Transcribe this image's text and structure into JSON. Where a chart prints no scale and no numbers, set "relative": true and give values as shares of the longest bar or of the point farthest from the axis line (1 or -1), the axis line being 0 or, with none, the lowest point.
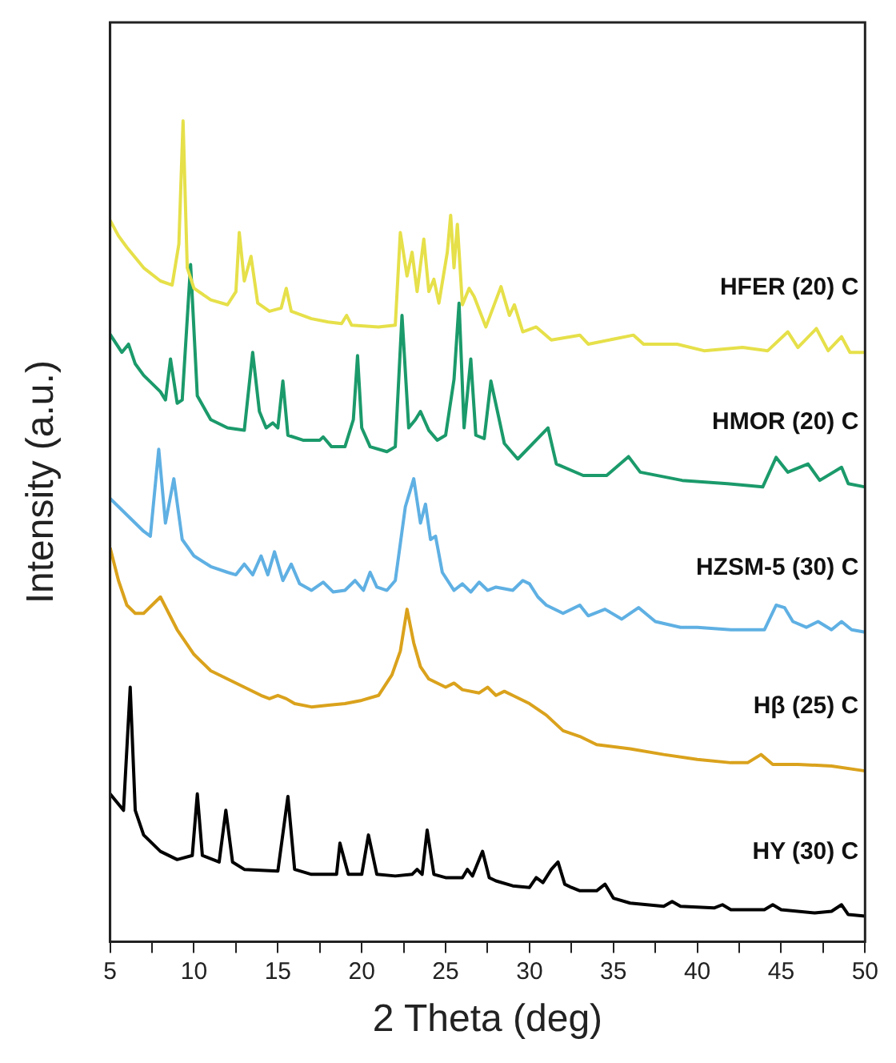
{
  "chart_data": {
    "type": "line",
    "xlabel": "2 Theta (deg)",
    "ylabel": "Intensity (a.u.)",
    "relative": true,
    "xlim": [
      5,
      50
    ],
    "xticks": [
      5,
      {
        "value": 7.5,
        "label": null
      },
      10,
      {
        "value": 12.5,
        "label": null
      },
      15,
      {
        "value": 17.5,
        "label": null
      },
      20,
      {
        "value": 22.5,
        "label": null
      },
      25,
      {
        "value": 27.5,
        "label": null
      },
      30,
      {
        "value": 32.5,
        "label": null
      },
      35,
      {
        "value": 37.5,
        "label": null
      },
      40,
      {
        "value": 42.5,
        "label": null
      },
      45,
      {
        "value": 47.5,
        "label": null
      },
      50
    ],
    "grid": false,
    "legend": false,
    "marker": "none",
    "line_style": "solid",
    "series": [
      {
        "name": "HFER (20) C",
        "color": "#e6e04a",
        "x": [
          5,
          5.5,
          6,
          7,
          8,
          8.7,
          9.1,
          9.35,
          9.6,
          10,
          11,
          12,
          12.5,
          12.7,
          13,
          13.4,
          13.8,
          14.5,
          15.2,
          15.5,
          15.8,
          17,
          18,
          18.8,
          19.1,
          19.4,
          21,
          22,
          22.3,
          22.7,
          23,
          23.3,
          23.7,
          24,
          24.3,
          24.6,
          25.1,
          25.3,
          25.5,
          25.7,
          26,
          26.4,
          26.7,
          27.4,
          28.3,
          28.8,
          29.1,
          29.6,
          30.4,
          31.3,
          33,
          33.5,
          36.2,
          36.8,
          38.8,
          40.4,
          42.7,
          44.2,
          45.4,
          46,
          47.1,
          47.8,
          48.6,
          49.1,
          50
        ],
        "values": [
          0.879,
          0.86,
          0.846,
          0.821,
          0.805,
          0.8,
          0.85,
          1,
          0.821,
          0.796,
          0.782,
          0.776,
          0.792,
          0.864,
          0.805,
          0.835,
          0.778,
          0.768,
          0.772,
          0.796,
          0.768,
          0.759,
          0.755,
          0.753,
          0.763,
          0.751,
          0.749,
          0.751,
          0.864,
          0.811,
          0.84,
          0.792,
          0.856,
          0.792,
          0.807,
          0.778,
          0.84,
          0.885,
          0.821,
          0.874,
          0.776,
          0.796,
          0.786,
          0.749,
          0.798,
          0.763,
          0.776,
          0.743,
          0.749,
          0.733,
          0.739,
          0.728,
          0.739,
          0.728,
          0.728,
          0.72,
          0.724,
          0.72,
          0.743,
          0.724,
          0.747,
          0.72,
          0.737,
          0.718,
          0.718
        ]
      },
      {
        "name": "HMOR (20) C",
        "color": "#1b9a6b",
        "x": [
          5,
          5.7,
          6.1,
          6.5,
          7,
          8,
          8.3,
          8.6,
          9,
          9.3,
          9.8,
          10.2,
          11,
          12,
          13,
          13.5,
          13.9,
          14.3,
          14.7,
          15,
          15.3,
          15.6,
          16.5,
          17.5,
          17.7,
          18.2,
          19,
          19.5,
          19.75,
          20,
          20.5,
          21.5,
          22,
          22.4,
          22.8,
          23.2,
          23.5,
          24,
          24.5,
          25,
          25.5,
          25.8,
          26.1,
          26.5,
          26.8,
          27.3,
          27.7,
          28.5,
          29.3,
          31.1,
          31.6,
          33.2,
          34.6,
          35.9,
          36.6,
          39.1,
          41.8,
          43.9,
          44.7,
          45.4,
          46.6,
          47.3,
          48.6,
          49,
          50
        ],
        "values": [
          0.74,
          0.718,
          0.728,
          0.704,
          0.69,
          0.67,
          0.66,
          0.71,
          0.656,
          0.66,
          0.825,
          0.665,
          0.636,
          0.626,
          0.623,
          0.718,
          0.646,
          0.626,
          0.632,
          0.626,
          0.683,
          0.617,
          0.611,
          0.611,
          0.615,
          0.603,
          0.603,
          0.636,
          0.714,
          0.626,
          0.603,
          0.597,
          0.603,
          0.763,
          0.626,
          0.636,
          0.646,
          0.623,
          0.611,
          0.617,
          0.685,
          0.778,
          0.626,
          0.71,
          0.617,
          0.613,
          0.683,
          0.607,
          0.588,
          0.626,
          0.582,
          0.568,
          0.568,
          0.591,
          0.572,
          0.562,
          0.558,
          0.554,
          0.59,
          0.572,
          0.582,
          0.562,
          0.578,
          0.558,
          0.554
        ]
      },
      {
        "name": "HZSM-5 (30) C",
        "color": "#5fb0e3",
        "x": [
          5,
          6,
          7,
          7.4,
          7.9,
          8.3,
          8.8,
          9.3,
          10,
          11,
          12,
          12.5,
          13,
          13.5,
          14,
          14.4,
          14.8,
          15.3,
          15.8,
          16.3,
          17,
          17.7,
          18.3,
          19,
          19.6,
          20.1,
          20.5,
          20.9,
          21.5,
          22,
          22.6,
          23.1,
          23.5,
          23.8,
          24.1,
          24.4,
          24.8,
          25.5,
          26,
          26.5,
          27,
          27.5,
          28,
          29,
          29.6,
          30,
          30.5,
          31,
          32,
          33,
          33.5,
          34.5,
          35.5,
          36.5,
          37.5,
          39,
          40,
          42,
          44,
          44.7,
          45.2,
          45.7,
          46.5,
          47.2,
          48,
          48.6,
          49.2,
          50
        ],
        "values": [
          0.54,
          0.52,
          0.5,
          0.494,
          0.6,
          0.51,
          0.564,
          0.49,
          0.47,
          0.457,
          0.45,
          0.447,
          0.46,
          0.447,
          0.47,
          0.447,
          0.475,
          0.44,
          0.46,
          0.436,
          0.428,
          0.438,
          0.426,
          0.428,
          0.44,
          0.428,
          0.45,
          0.432,
          0.428,
          0.44,
          0.53,
          0.564,
          0.51,
          0.533,
          0.49,
          0.494,
          0.45,
          0.428,
          0.436,
          0.426,
          0.438,
          0.428,
          0.432,
          0.428,
          0.44,
          0.436,
          0.42,
          0.41,
          0.4,
          0.41,
          0.397,
          0.405,
          0.393,
          0.407,
          0.39,
          0.383,
          0.383,
          0.38,
          0.38,
          0.41,
          0.407,
          0.39,
          0.383,
          0.39,
          0.38,
          0.39,
          0.38,
          0.377
        ]
      },
      {
        "name": "Hβ (25) C",
        "color": "#daa21c",
        "x": [
          5,
          5.5,
          6,
          6.5,
          7,
          7.5,
          8,
          8.5,
          9,
          10,
          11,
          12,
          13,
          14,
          14.5,
          15,
          15.5,
          16,
          17,
          18,
          19,
          20,
          21,
          21.8,
          22.3,
          22.7,
          23.1,
          23.5,
          24,
          25,
          25.5,
          26,
          27,
          27.5,
          28,
          28.5,
          29,
          30,
          31,
          32,
          33,
          34,
          36,
          38,
          40,
          42,
          43,
          43.8,
          44.5,
          46,
          48,
          50
        ],
        "values": [
          0.48,
          0.44,
          0.41,
          0.4,
          0.4,
          0.41,
          0.42,
          0.4,
          0.38,
          0.35,
          0.33,
          0.32,
          0.31,
          0.3,
          0.296,
          0.3,
          0.296,
          0.29,
          0.286,
          0.288,
          0.29,
          0.294,
          0.3,
          0.325,
          0.354,
          0.405,
          0.364,
          0.335,
          0.32,
          0.31,
          0.315,
          0.307,
          0.303,
          0.31,
          0.3,
          0.305,
          0.3,
          0.29,
          0.276,
          0.257,
          0.25,
          0.24,
          0.235,
          0.228,
          0.222,
          0.218,
          0.218,
          0.228,
          0.216,
          0.216,
          0.214,
          0.208
        ]
      },
      {
        "name": "HY (30) C",
        "color": "#000000",
        "x": [
          5,
          5.8,
          6.2,
          6.5,
          7,
          8,
          9,
          9.9,
          10.2,
          10.5,
          11.5,
          11.9,
          12.3,
          13,
          15,
          15.6,
          16,
          17,
          18.5,
          18.7,
          19.2,
          20,
          20.4,
          20.9,
          22,
          23,
          23.3,
          23.6,
          23.9,
          24.3,
          25,
          26,
          26.3,
          26.6,
          27.2,
          27.6,
          28,
          29,
          30,
          30.4,
          30.8,
          31.3,
          31.7,
          32.1,
          32.5,
          33,
          34,
          34.5,
          35,
          36,
          38,
          38.5,
          39,
          41,
          41.5,
          42,
          44,
          44.5,
          45,
          47,
          48,
          48.6,
          49,
          50
        ],
        "values": [
          0.18,
          0.16,
          0.31,
          0.16,
          0.13,
          0.11,
          0.1,
          0.105,
          0.18,
          0.105,
          0.097,
          0.16,
          0.097,
          0.088,
          0.086,
          0.177,
          0.088,
          0.082,
          0.082,
          0.12,
          0.082,
          0.082,
          0.13,
          0.082,
          0.08,
          0.082,
          0.088,
          0.082,
          0.136,
          0.082,
          0.078,
          0.078,
          0.088,
          0.08,
          0.11,
          0.078,
          0.074,
          0.068,
          0.066,
          0.078,
          0.072,
          0.088,
          0.097,
          0.07,
          0.066,
          0.062,
          0.062,
          0.07,
          0.053,
          0.047,
          0.043,
          0.049,
          0.043,
          0.041,
          0.045,
          0.039,
          0.039,
          0.045,
          0.039,
          0.035,
          0.037,
          0.045,
          0.033,
          0.031
        ]
      }
    ]
  }
}
